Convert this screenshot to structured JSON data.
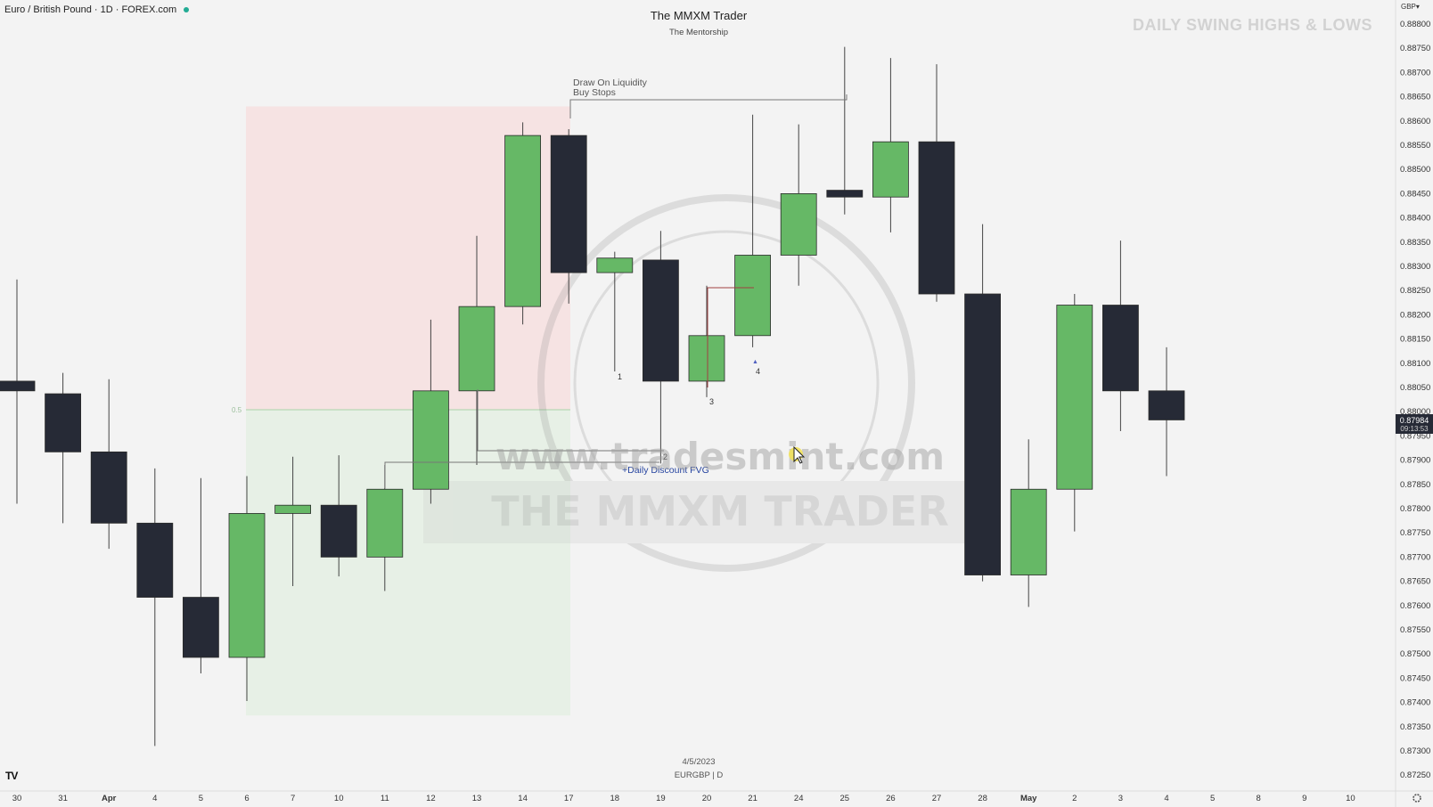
{
  "header": {
    "symbol_title": "Euro / British Pound · 1D · FOREX.com",
    "center_title": "The MMXM Trader",
    "center_subtitle": "The Mentorship",
    "top_right_title": "DAILY SWING HIGHS & LOWS",
    "currency": "GBP▾"
  },
  "annotations": {
    "dol_line1": "Draw On Liquidity",
    "dol_line2": "Buy Stops",
    "fvg_label": "+Daily Discount FVG",
    "fib_label": "0.5",
    "n1": "1",
    "n2": "2",
    "n3": "3",
    "n4": "4",
    "watermark_url": "www.tradesmint.com",
    "watermark_brand": "THE MMXM TRADER"
  },
  "footer": {
    "date": "4/5/2023",
    "symbol": "EURGBP | D",
    "logo": "TV"
  },
  "price_axis": {
    "ticks": [
      "0.88800",
      "0.88750",
      "0.88700",
      "0.88650",
      "0.88600",
      "0.88550",
      "0.88500",
      "0.88450",
      "0.88400",
      "0.88350",
      "0.88300",
      "0.88250",
      "0.88200",
      "0.88150",
      "0.88100",
      "0.88050",
      "0.88000",
      "0.87950",
      "0.87900",
      "0.87850",
      "0.87800",
      "0.87750",
      "0.87700",
      "0.87650",
      "0.87600",
      "0.87550",
      "0.87500",
      "0.87450",
      "0.87400",
      "0.87350",
      "0.87300",
      "0.87250"
    ],
    "last_price": "0.87984",
    "countdown": "09:13:53"
  },
  "chart_data": {
    "type": "candlestick",
    "symbol": "EURGBP",
    "timeframe": "1D",
    "ylim": [
      0.8723,
      0.8883
    ],
    "colors": {
      "up": "#66b866",
      "down": "#262a36",
      "wick": "#444444"
    },
    "x_ticks": [
      "30",
      "31",
      "Apr",
      "4",
      "5",
      "6",
      "7",
      "10",
      "11",
      "12",
      "13",
      "14",
      "17",
      "18",
      "19",
      "20",
      "21",
      "24",
      "25",
      "26",
      "27",
      "28",
      "May",
      "2",
      "3",
      "4",
      "5",
      "8",
      "9",
      "10"
    ],
    "candles": [
      {
        "date": "30",
        "o": 0.88063,
        "h": 0.88273,
        "l": 0.8781,
        "c": 0.88043
      },
      {
        "date": "31",
        "o": 0.88037,
        "h": 0.8808,
        "l": 0.8777,
        "c": 0.87917
      },
      {
        "date": "Apr",
        "o": 0.87917,
        "h": 0.88067,
        "l": 0.87717,
        "c": 0.8777
      },
      {
        "date": "4",
        "o": 0.8777,
        "h": 0.87883,
        "l": 0.8731,
        "c": 0.87617
      },
      {
        "date": "5",
        "o": 0.87617,
        "h": 0.87863,
        "l": 0.8746,
        "c": 0.87493
      },
      {
        "date": "6",
        "o": 0.87493,
        "h": 0.87867,
        "l": 0.87403,
        "c": 0.8779
      },
      {
        "date": "7",
        "o": 0.8779,
        "h": 0.87907,
        "l": 0.8764,
        "c": 0.87807
      },
      {
        "date": "10",
        "o": 0.87807,
        "h": 0.8791,
        "l": 0.8766,
        "c": 0.877
      },
      {
        "date": "11",
        "o": 0.877,
        "h": 0.8789,
        "l": 0.8763,
        "c": 0.8784
      },
      {
        "date": "12",
        "o": 0.8784,
        "h": 0.8819,
        "l": 0.8781,
        "c": 0.88043
      },
      {
        "date": "13",
        "o": 0.88043,
        "h": 0.88363,
        "l": 0.8789,
        "c": 0.88217
      },
      {
        "date": "14",
        "o": 0.88217,
        "h": 0.88597,
        "l": 0.8818,
        "c": 0.8857
      },
      {
        "date": "17",
        "o": 0.8857,
        "h": 0.88583,
        "l": 0.88223,
        "c": 0.88287
      },
      {
        "date": "18",
        "o": 0.88287,
        "h": 0.8833,
        "l": 0.88083,
        "c": 0.88317
      },
      {
        "date": "19",
        "o": 0.88313,
        "h": 0.88373,
        "l": 0.87893,
        "c": 0.88063
      },
      {
        "date": "20",
        "o": 0.88063,
        "h": 0.8826,
        "l": 0.8803,
        "c": 0.88157
      },
      {
        "date": "21",
        "o": 0.88157,
        "h": 0.88613,
        "l": 0.88133,
        "c": 0.88323
      },
      {
        "date": "24",
        "o": 0.88323,
        "h": 0.88593,
        "l": 0.8826,
        "c": 0.8845
      },
      {
        "date": "25",
        "o": 0.88457,
        "h": 0.88753,
        "l": 0.88407,
        "c": 0.88443
      },
      {
        "date": "26",
        "o": 0.88443,
        "h": 0.8873,
        "l": 0.8837,
        "c": 0.88557
      },
      {
        "date": "27",
        "o": 0.88557,
        "h": 0.88717,
        "l": 0.88227,
        "c": 0.88243
      },
      {
        "date": "28",
        "o": 0.88243,
        "h": 0.88387,
        "l": 0.8765,
        "c": 0.87663
      },
      {
        "date": "May",
        "o": 0.87663,
        "h": 0.87943,
        "l": 0.87597,
        "c": 0.8784
      },
      {
        "date": "2",
        "o": 0.8784,
        "h": 0.88243,
        "l": 0.87753,
        "c": 0.8822
      },
      {
        "date": "3",
        "o": 0.8822,
        "h": 0.88353,
        "l": 0.8796,
        "c": 0.88043
      },
      {
        "date": "4",
        "o": 0.88043,
        "h": 0.88133,
        "l": 0.87867,
        "c": 0.87983
      }
    ]
  }
}
